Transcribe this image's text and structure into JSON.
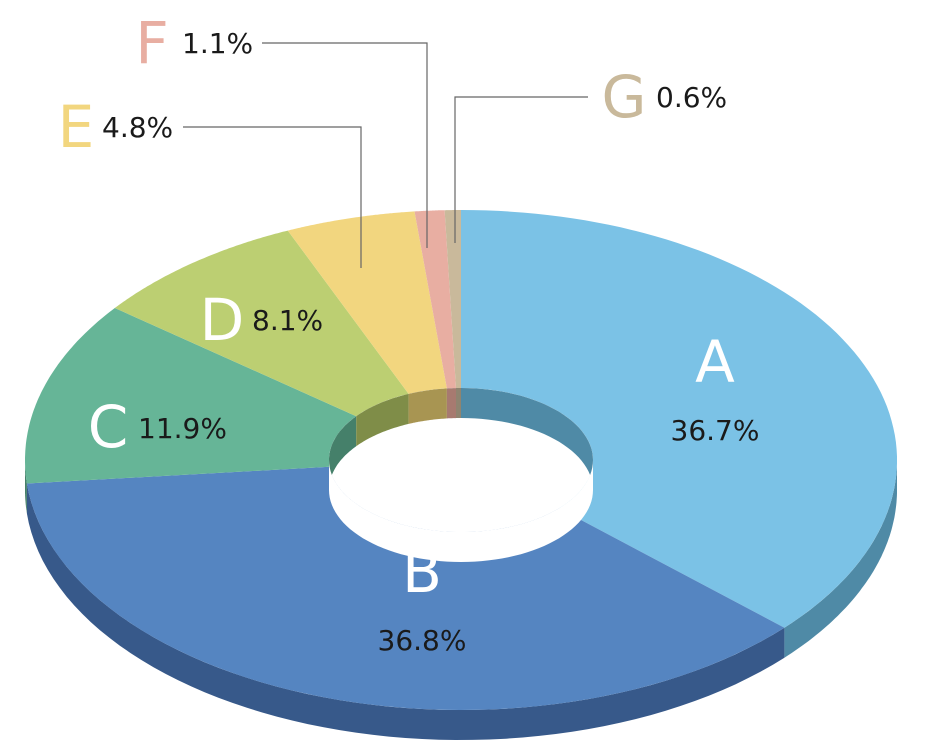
{
  "chart_data": {
    "type": "pie",
    "style": "3d-doughnut",
    "title": "",
    "slices": [
      {
        "name": "A",
        "value": 36.7,
        "label": "36.7%",
        "color": "#7bc2e6",
        "side": "#4f8aa6",
        "text_color": "#ffffff",
        "pct_color": "#1a1a1a"
      },
      {
        "name": "B",
        "value": 36.8,
        "label": "36.8%",
        "color": "#5585c1",
        "side": "#37598a",
        "text_color": "#ffffff",
        "pct_color": "#1a1a1a"
      },
      {
        "name": "C",
        "value": 11.9,
        "label": "11.9%",
        "color": "#66b597",
        "side": "#45806a",
        "text_color": "#ffffff",
        "pct_color": "#1a1a1a"
      },
      {
        "name": "D",
        "value": 8.1,
        "label": "8.1%",
        "color": "#bccf72",
        "side": "#7f8d48",
        "text_color": "#ffffff",
        "pct_color": "#1a1a1a"
      },
      {
        "name": "E",
        "value": 4.8,
        "label": "4.8%",
        "color": "#f2d67f",
        "side": "#a89552",
        "text_color": "#f2d67f",
        "pct_color": "#1a1a1a"
      },
      {
        "name": "F",
        "value": 1.1,
        "label": "1.1%",
        "color": "#e8aea2",
        "side": "#a77a70",
        "text_color": "#e8aea2",
        "pct_color": "#1a1a1a"
      },
      {
        "name": "G",
        "value": 0.6,
        "label": "0.6%",
        "color": "#c9b99b",
        "side": "#8f8470",
        "text_color": "#c9b99b",
        "pct_color": "#1a1a1a"
      }
    ],
    "legend": "none"
  }
}
